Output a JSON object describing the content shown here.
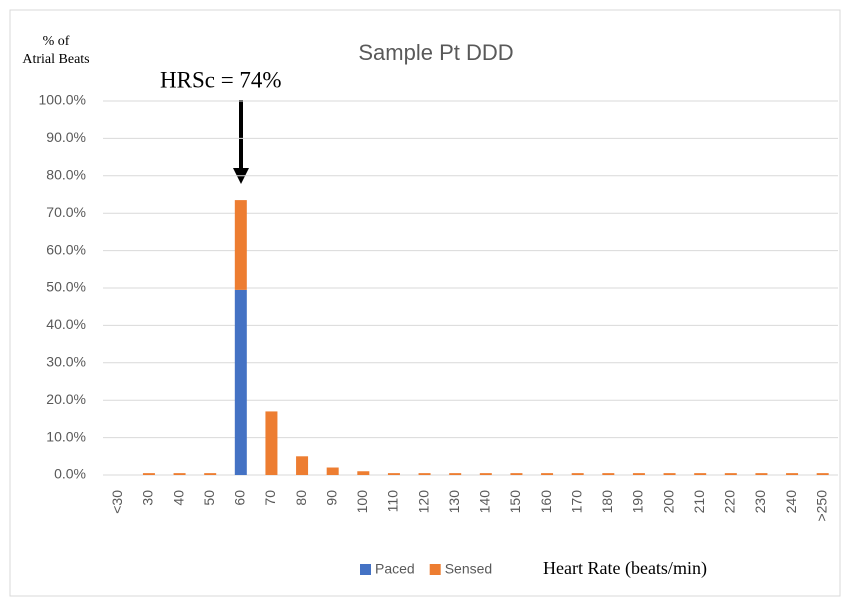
{
  "chart_data": {
    "type": "bar",
    "stacked": true,
    "title": "Sample Pt DDD",
    "y_label": [
      "% of",
      "Atrial Beats"
    ],
    "annotation": "HRSc = 74%",
    "x_label": "Heart Rate (beats/min)",
    "categories": [
      "<30",
      "30",
      "40",
      "50",
      "60",
      "70",
      "80",
      "90",
      "100",
      "110",
      "120",
      "130",
      "140",
      "150",
      "160",
      "170",
      "180",
      "190",
      "200",
      "210",
      "220",
      "230",
      "240",
      ">250"
    ],
    "series": [
      {
        "name": "Paced",
        "color": "#4472c4",
        "values": [
          0,
          0,
          0,
          0,
          49.5,
          0,
          0,
          0,
          0,
          0,
          0,
          0,
          0,
          0,
          0,
          0,
          0,
          0,
          0,
          0,
          0,
          0,
          0,
          0
        ]
      },
      {
        "name": "Sensed",
        "color": "#ed7d31",
        "values": [
          0,
          0.5,
          0.5,
          0.5,
          24,
          17,
          5,
          2,
          1,
          0.5,
          0.5,
          0.5,
          0.5,
          0.5,
          0.5,
          0.5,
          0.5,
          0.5,
          0.5,
          0.5,
          0.5,
          0.5,
          0.5,
          0.5
        ]
      }
    ],
    "ylim": [
      0,
      100
    ],
    "yticks": [
      {
        "value": 0,
        "label": "0.0%"
      },
      {
        "value": 10,
        "label": "10.0%"
      },
      {
        "value": 20,
        "label": "20.0%"
      },
      {
        "value": 30,
        "label": "30.0%"
      },
      {
        "value": 40,
        "label": "40.0%"
      },
      {
        "value": 50,
        "label": "50.0%"
      },
      {
        "value": 60,
        "label": "60.0%"
      },
      {
        "value": 70,
        "label": "70.0%"
      },
      {
        "value": 80,
        "label": "80.0%"
      },
      {
        "value": 90,
        "label": "90.0%"
      },
      {
        "value": 100,
        "label": "100.0%"
      }
    ],
    "grid": true,
    "legend": "bottom"
  }
}
